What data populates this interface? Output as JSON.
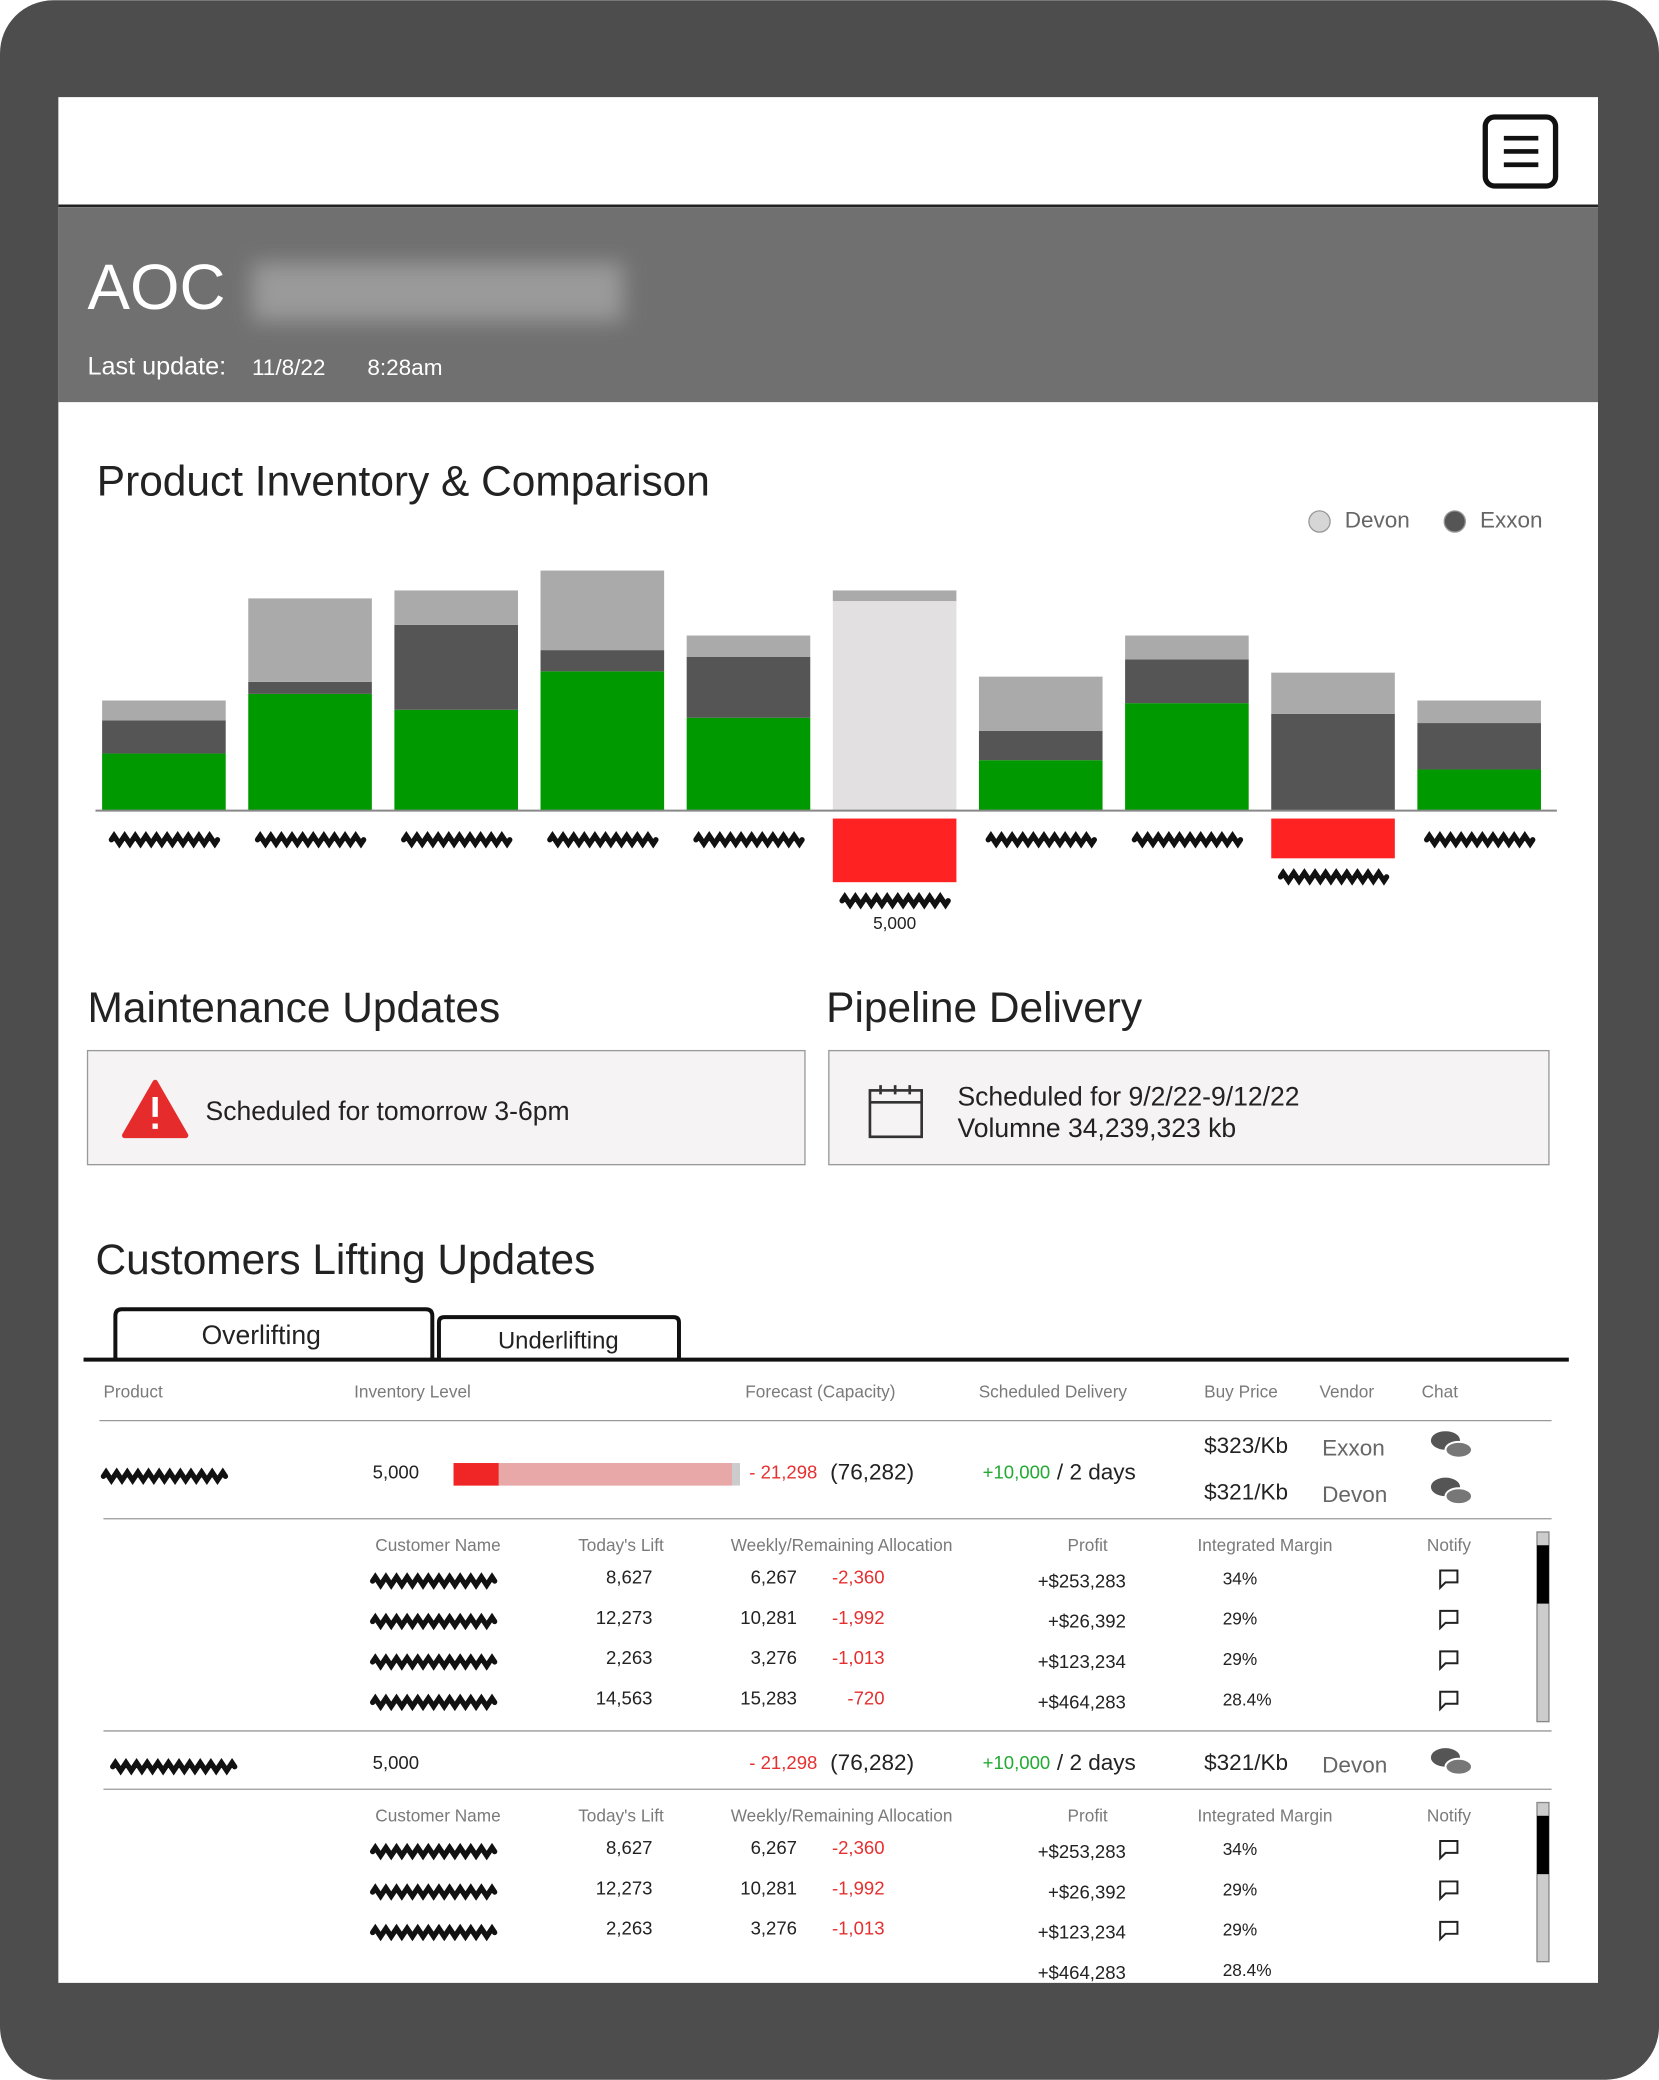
{
  "header": {
    "title": "AOC",
    "last_update_label": "Last update:",
    "date": "11/8/22",
    "time": "8:28am"
  },
  "chart_data": {
    "type": "bar",
    "title": "Product Inventory & Comparison",
    "series": [
      {
        "color": "#009900",
        "values": [
          43,
          88,
          76,
          105,
          70,
          0,
          38,
          81,
          0,
          31
        ]
      },
      {
        "color": "#e2e0e0",
        "values": [
          0,
          0,
          0,
          0,
          0,
          158,
          0,
          0,
          0,
          0
        ]
      },
      {
        "name": "Exxon",
        "color": "#555555",
        "values": [
          25,
          9,
          64,
          16,
          46,
          0,
          22,
          33,
          73,
          35
        ]
      },
      {
        "name": "Devon",
        "color": "#aaaaaa",
        "values": [
          15,
          63,
          26,
          60,
          16,
          8,
          41,
          18,
          31,
          17
        ]
      },
      {
        "color": "#ff2222",
        "values": [
          0,
          0,
          0,
          0,
          0,
          -54,
          0,
          0,
          -36,
          0
        ]
      }
    ],
    "ylim": [
      -60,
      190
    ],
    "bar_annotation": "5,000"
  },
  "maintenance": {
    "title": "Maintenance Updates",
    "text": "Scheduled for tomorrow 3-6pm"
  },
  "pipeline": {
    "title": "Pipeline Delivery",
    "lines": [
      "Scheduled for 9/2/22-9/12/22",
      "Volumne 34,239,323 kb"
    ]
  },
  "lifting": {
    "title": "Customers Lifting Updates",
    "tabs": [
      "Overlifting",
      "Underlifting"
    ],
    "columns": [
      "Product",
      "Inventory Level",
      "Forecast (Capacity)",
      "Scheduled Delivery",
      "Buy Price",
      "Vendor",
      "Chat"
    ],
    "products": [
      {
        "inventory": "5,000",
        "forecast": "- 21,298",
        "capacity": "(76,282)",
        "delivery": "+10,000",
        "delivery_time": "/ 2 days",
        "vendors": [
          {
            "price": "$323/Kb",
            "name": "Exxon"
          },
          {
            "price": "$321/Kb",
            "name": "Devon"
          }
        ],
        "detail_columns": [
          "Customer Name",
          "Today's Lift",
          "Weekly/Remaining Allocation",
          "Profit",
          "Integrated Margin",
          "Notify"
        ],
        "customers": [
          {
            "lift": "8,627",
            "weekly": "6,267",
            "remaining": "-2,360",
            "profit": "+$253,283",
            "margin": "34%"
          },
          {
            "lift": "12,273",
            "weekly": "10,281",
            "remaining": "-1,992",
            "profit": "+$26,392",
            "margin": "29%"
          },
          {
            "lift": "2,263",
            "weekly": "3,276",
            "remaining": "-1,013",
            "profit": "+$123,234",
            "margin": "29%"
          },
          {
            "lift": "14,563",
            "weekly": "15,283",
            "remaining": "-720",
            "profit": "+$464,283",
            "margin": "28.4%"
          }
        ]
      },
      {
        "inventory": "5,000",
        "forecast": "- 21,298",
        "capacity": "(76,282)",
        "delivery": "+10,000",
        "delivery_time": "/ 2 days",
        "vendors": [
          {
            "price": "$321/Kb",
            "name": "Devon"
          }
        ],
        "detail_columns": [
          "Customer Name",
          "Today's Lift",
          "Weekly/Remaining Allocation",
          "Profit",
          "Integrated Margin",
          "Notify"
        ],
        "customers": [
          {
            "lift": "8,627",
            "weekly": "6,267",
            "remaining": "-2,360",
            "profit": "+$253,283",
            "margin": "34%"
          },
          {
            "lift": "12,273",
            "weekly": "10,281",
            "remaining": "-1,992",
            "profit": "+$26,392",
            "margin": "29%"
          },
          {
            "lift": "2,263",
            "weekly": "3,276",
            "remaining": "-1,013",
            "profit": "+$123,234",
            "margin": "29%"
          },
          {
            "profit": "+$464,283",
            "margin": "28.4%"
          }
        ]
      }
    ]
  }
}
